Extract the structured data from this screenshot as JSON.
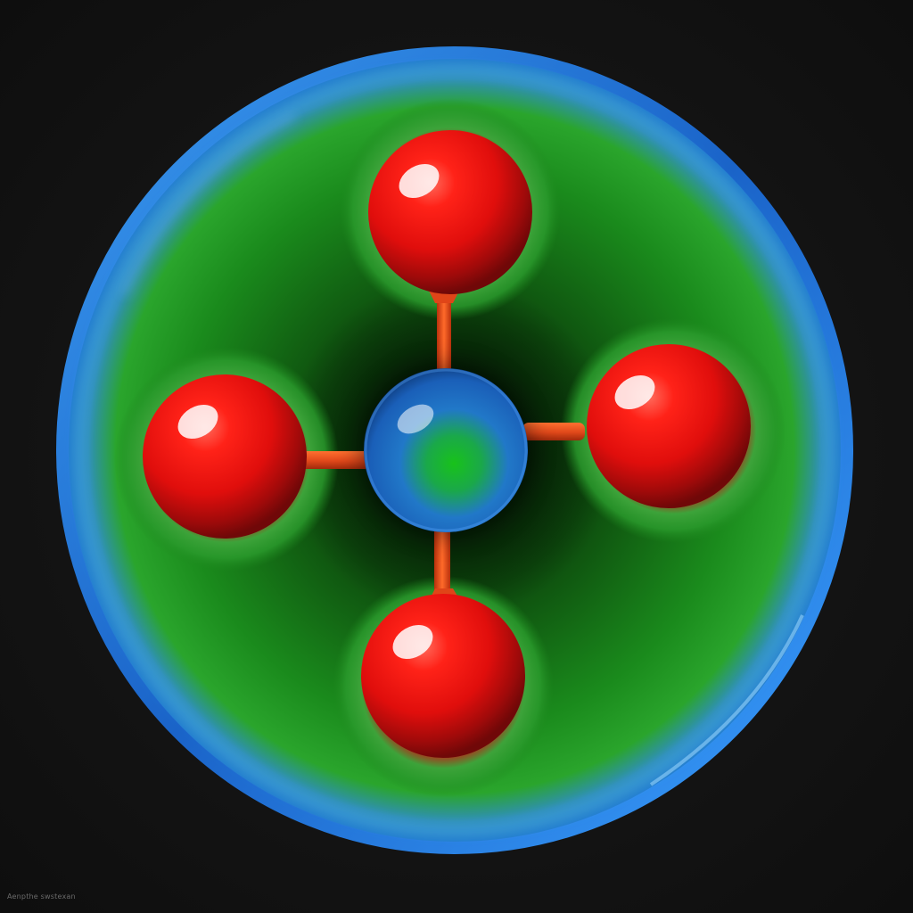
{
  "image": {
    "subject": "molecule-illustration",
    "colors": {
      "background": "#141414",
      "shell_ring": "#1f78d8",
      "shell_fill": "#1e8a1e",
      "outer_atom": "#e81212",
      "atom_halo": "#2aa02a",
      "central_atom_blue": "#1f6fd0",
      "central_atom_green": "#17b81a",
      "bond": "#e8501a"
    },
    "outer_atoms": [
      "top",
      "left",
      "right",
      "bottom"
    ],
    "central_atom": "center"
  },
  "watermark": {
    "text": "Aenpthe swstexan"
  }
}
